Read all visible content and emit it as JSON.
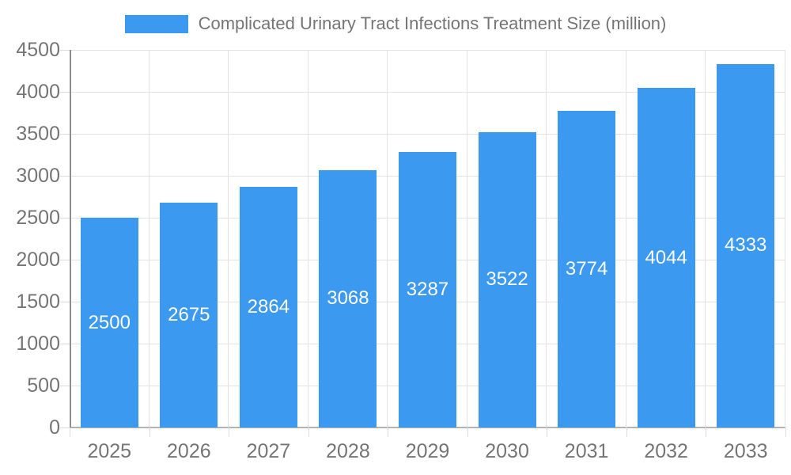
{
  "legend": {
    "swatch_icon": "legend-color-swatch"
  },
  "chart_data": {
    "type": "bar",
    "title": "Complicated Urinary Tract Infections Treatment Size (million)",
    "categories": [
      "2025",
      "2026",
      "2027",
      "2028",
      "2029",
      "2030",
      "2031",
      "2032",
      "2033"
    ],
    "values": [
      2500,
      2675,
      2864,
      3068,
      3287,
      3522,
      3774,
      4044,
      4333
    ],
    "xlabel": "",
    "ylabel": "",
    "ylim": [
      0,
      4500
    ],
    "ytick_step": 500,
    "yticks": [
      0,
      500,
      1000,
      1500,
      2000,
      2500,
      3000,
      3500,
      4000,
      4500
    ],
    "grid": true,
    "legend_position": "top",
    "value_labels": "inside-center"
  },
  "colors": {
    "bar": "#3B99EF",
    "grid": "#E3E3E3",
    "tick": "#DCDCDC",
    "axis": "#8F8F8F",
    "baseline": "#B3B3B3",
    "text": "#757575",
    "value_label": "#FFFFFF",
    "background": "#FFFFFF"
  }
}
